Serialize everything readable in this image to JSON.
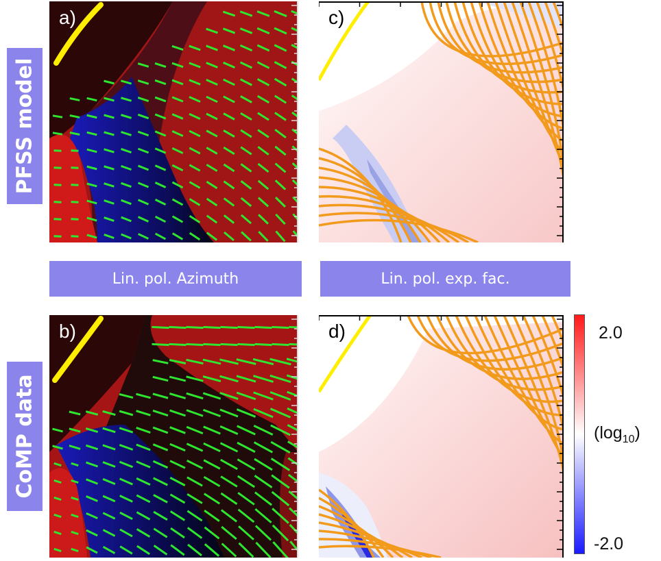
{
  "panels": {
    "a": {
      "label": "a)"
    },
    "b": {
      "label": "b)"
    },
    "c": {
      "label": "c)"
    },
    "d": {
      "label": "d)"
    }
  },
  "rows": {
    "top": "PFSS model",
    "bottom": "CoMP data"
  },
  "columns": {
    "left": "Lin. pol. Azimuth",
    "right": "Lin. pol. exp. fac."
  },
  "colorbar": {
    "max_label": "2.0",
    "unit_main": "(log",
    "unit_sub": "10",
    "unit_close": ")",
    "min_label": "-2.0",
    "range": [
      -2.0,
      2.0
    ],
    "colors": [
      "#1a1aff",
      "#ffffff",
      "#ff1a1a"
    ]
  },
  "chart_data": [
    {
      "type": "heatmap",
      "panel": "a",
      "description_colors": {
        "background": "#aa1a1a",
        "limb": "#2a0a0a",
        "negative": "#1a1ab0",
        "vectors": "#33ee33",
        "limb_line": "#ffee00"
      },
      "quantity": "Lin. pol. Azimuth"
    },
    {
      "type": "heatmap",
      "panel": "b",
      "quantity": "Lin. pol. Azimuth"
    },
    {
      "type": "heatmap",
      "panel": "c",
      "quantity": "Lin. pol. exp. fac.",
      "colorbar_range": [
        -2.0,
        2.0
      ],
      "field_line_color": "#f29a1c"
    },
    {
      "type": "heatmap",
      "panel": "d",
      "quantity": "Lin. pol. exp. fac.",
      "colorbar_range": [
        -2.0,
        2.0
      ],
      "field_line_color": "#f29a1c"
    }
  ]
}
